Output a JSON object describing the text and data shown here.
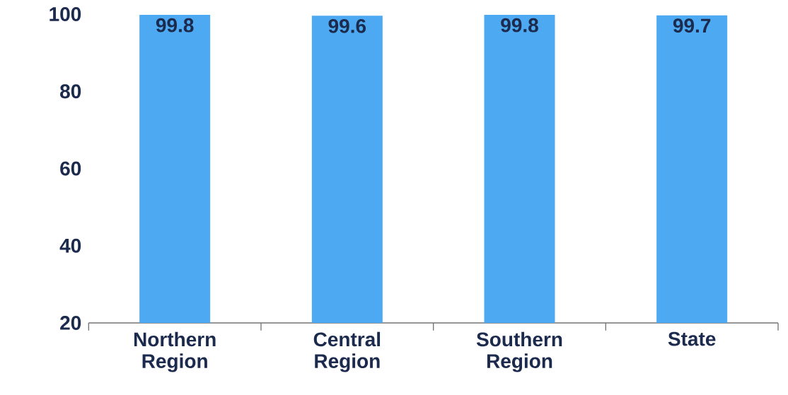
{
  "chart_data": {
    "type": "bar",
    "categories": [
      "Northern Region",
      "Central Region",
      "Southern Region",
      "State"
    ],
    "values": [
      99.8,
      99.6,
      99.8,
      99.7
    ],
    "value_labels": [
      "99.8",
      "99.6",
      "99.8",
      "99.7"
    ],
    "color": "#4ca9f2",
    "ylim": [
      20,
      100
    ],
    "yticks": [
      20,
      40,
      60,
      80,
      100
    ],
    "grid": false
  }
}
